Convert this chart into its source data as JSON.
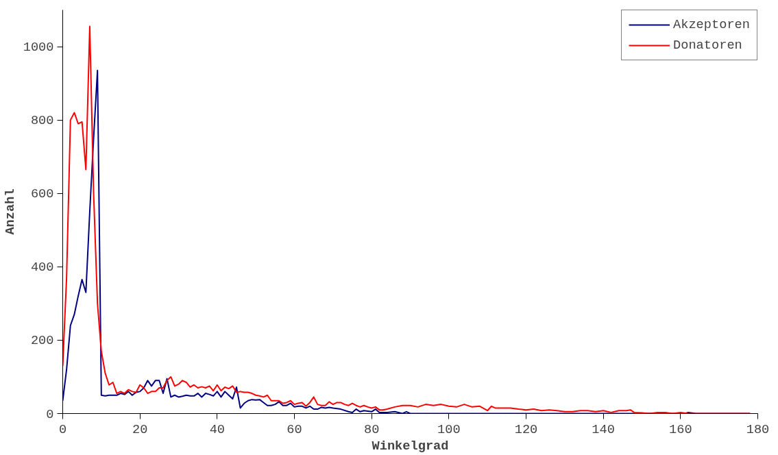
{
  "chart_data": {
    "type": "line",
    "xlabel": "Winkelgrad",
    "ylabel": "Anzahl",
    "xlim": [
      0,
      180
    ],
    "ylim": [
      0,
      1100
    ],
    "xticks": [
      0,
      20,
      40,
      60,
      80,
      100,
      120,
      140,
      160,
      180
    ],
    "yticks": [
      0,
      200,
      400,
      600,
      800,
      1000
    ],
    "grid": false,
    "legend": "top right",
    "marker": "none",
    "line_style": "solid",
    "series": [
      {
        "name": "Akzeptoren",
        "color": "#000080",
        "x": [
          0,
          1,
          2,
          3,
          4,
          5,
          6,
          7,
          8,
          9,
          10,
          11,
          12,
          13,
          14,
          15,
          16,
          17,
          18,
          19,
          20,
          21,
          22,
          23,
          24,
          25,
          26,
          27,
          28,
          29,
          30,
          31,
          32,
          33,
          34,
          35,
          36,
          37,
          38,
          39,
          40,
          41,
          42,
          43,
          44,
          45,
          46,
          47,
          48,
          49,
          50,
          51,
          52,
          53,
          54,
          55,
          56,
          57,
          58,
          59,
          60,
          61,
          62,
          63,
          64,
          65,
          66,
          67,
          68,
          69,
          70,
          72,
          74,
          75,
          76,
          77,
          78,
          80,
          81,
          82,
          84,
          86,
          88,
          89,
          90,
          100,
          120,
          140,
          158,
          161,
          162,
          164,
          178
        ],
        "values": [
          35,
          120,
          240,
          270,
          320,
          365,
          330,
          550,
          750,
          935,
          50,
          48,
          50,
          50,
          50,
          55,
          52,
          60,
          50,
          58,
          60,
          70,
          90,
          75,
          90,
          90,
          55,
          95,
          45,
          50,
          45,
          47,
          50,
          48,
          48,
          55,
          45,
          55,
          52,
          48,
          60,
          45,
          60,
          50,
          40,
          72,
          15,
          28,
          35,
          38,
          37,
          38,
          30,
          22,
          22,
          25,
          32,
          22,
          22,
          28,
          18,
          20,
          20,
          15,
          20,
          12,
          12,
          17,
          15,
          17,
          15,
          12,
          5,
          3,
          12,
          5,
          8,
          5,
          12,
          3,
          3,
          5,
          0,
          5,
          0,
          0,
          0,
          0,
          0,
          0,
          3,
          0,
          0
        ]
      },
      {
        "name": "Donatoren",
        "color": "#ff0000",
        "x": [
          0,
          1,
          2,
          3,
          4,
          5,
          6,
          7,
          8,
          9,
          10,
          11,
          12,
          13,
          14,
          15,
          16,
          17,
          18,
          19,
          20,
          21,
          22,
          23,
          24,
          25,
          26,
          27,
          28,
          29,
          30,
          31,
          32,
          33,
          34,
          35,
          36,
          37,
          38,
          39,
          40,
          41,
          42,
          43,
          44,
          45,
          46,
          47,
          48,
          49,
          50,
          51,
          52,
          53,
          54,
          55,
          56,
          57,
          58,
          59,
          60,
          61,
          62,
          63,
          64,
          65,
          66,
          67,
          68,
          69,
          70,
          71,
          72,
          73,
          74,
          75,
          76,
          77,
          78,
          79,
          80,
          81,
          82,
          83,
          84,
          86,
          88,
          90,
          92,
          94,
          96,
          98,
          100,
          102,
          104,
          106,
          108,
          110,
          111,
          112,
          114,
          116,
          118,
          120,
          122,
          124,
          126,
          128,
          130,
          132,
          134,
          136,
          138,
          140,
          142,
          144,
          146,
          147,
          148,
          150,
          152,
          154,
          156,
          158,
          160,
          162,
          164,
          178
        ],
        "values": [
          130,
          370,
          800,
          820,
          790,
          795,
          665,
          1055,
          600,
          300,
          170,
          110,
          78,
          85,
          55,
          60,
          55,
          65,
          60,
          58,
          78,
          70,
          55,
          60,
          60,
          70,
          70,
          90,
          100,
          75,
          80,
          90,
          85,
          72,
          78,
          70,
          73,
          70,
          75,
          62,
          78,
          62,
          72,
          68,
          75,
          58,
          60,
          58,
          58,
          55,
          50,
          48,
          45,
          50,
          35,
          35,
          35,
          28,
          30,
          35,
          25,
          28,
          30,
          20,
          30,
          45,
          25,
          22,
          22,
          32,
          25,
          30,
          30,
          25,
          22,
          28,
          22,
          18,
          22,
          18,
          15,
          18,
          10,
          10,
          12,
          18,
          22,
          22,
          18,
          25,
          22,
          25,
          20,
          18,
          25,
          18,
          20,
          8,
          20,
          15,
          15,
          15,
          12,
          10,
          12,
          8,
          10,
          8,
          5,
          5,
          8,
          8,
          5,
          8,
          3,
          8,
          8,
          10,
          3,
          2,
          0,
          3,
          3,
          0,
          3,
          0,
          0,
          0
        ]
      }
    ]
  }
}
